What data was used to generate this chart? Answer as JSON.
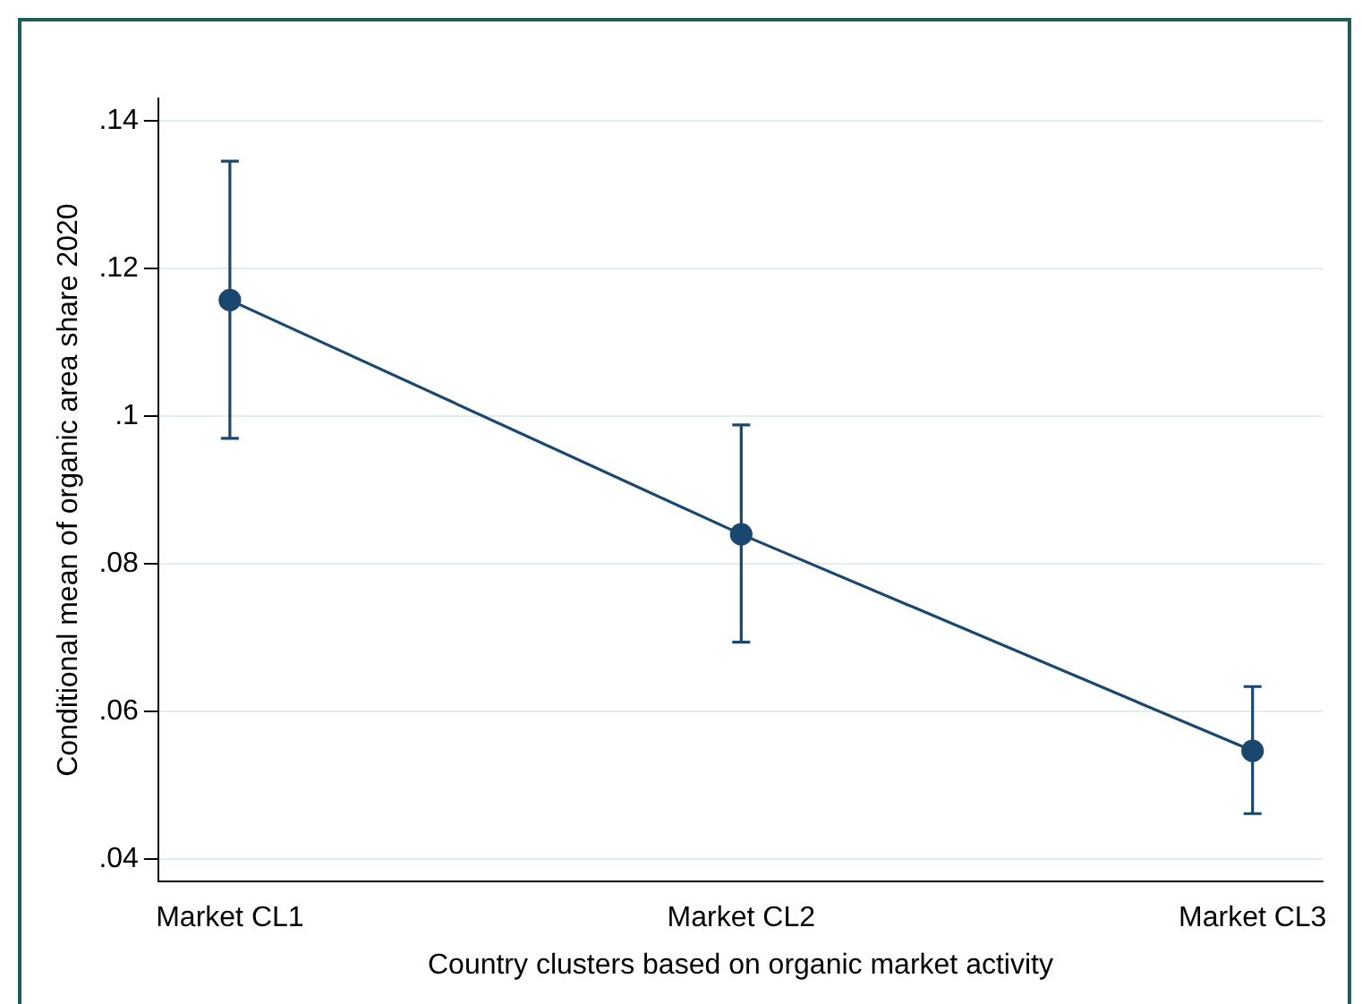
{
  "chart_data": {
    "type": "line",
    "xlabel": "Country clusters based on organic market activity",
    "ylabel": "Conditional mean of organic area share 2020",
    "categories": [
      "Market CL1",
      "Market CL2",
      "Market CL3"
    ],
    "series": [
      {
        "color": "#1a476f",
        "values": [
          0.1157,
          0.084,
          0.0547
        ],
        "errors": [
          [
            0.097,
            0.1345
          ],
          [
            0.0694,
            0.0988
          ],
          [
            0.0462,
            0.0634
          ]
        ]
      }
    ],
    "ylim": [
      0.037,
      0.143
    ],
    "yticks": [
      {
        "value": 0.04,
        "label": ".04"
      },
      {
        "value": 0.06,
        "label": ".06"
      },
      {
        "value": 0.08,
        "label": ".08"
      },
      {
        "value": 0.1,
        "label": ".1"
      },
      {
        "value": 0.12,
        "label": ".12"
      },
      {
        "value": 0.14,
        "label": ".14"
      }
    ],
    "grid": "y",
    "legend": false,
    "marker": "circle",
    "line_style": "solid"
  }
}
